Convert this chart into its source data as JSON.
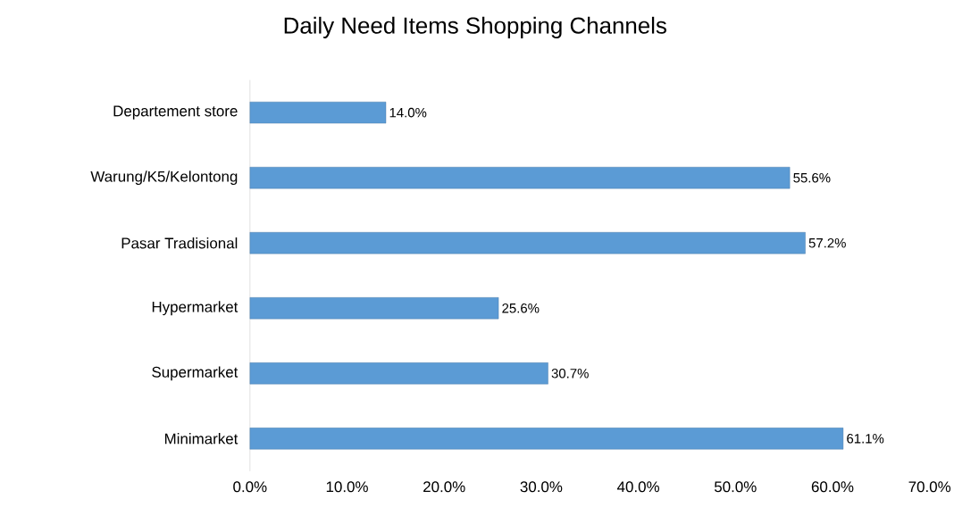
{
  "chart_data": {
    "type": "bar",
    "orientation": "horizontal",
    "title": "Daily Need Items Shopping Channels",
    "categories": [
      "Departement store",
      "Warung/K5/Kelontong",
      "Pasar Tradisional",
      "Hypermarket",
      "Supermarket",
      "Minimarket"
    ],
    "values": [
      14.0,
      55.6,
      57.2,
      25.6,
      30.7,
      61.1
    ],
    "value_labels": [
      "14.0%",
      "55.6%",
      "57.2%",
      "25.6%",
      "30.7%",
      "61.1%"
    ],
    "color": "#5b9bd5",
    "xlim": [
      0,
      70
    ],
    "xticks": [
      {
        "value": 0,
        "label": "0.0%"
      },
      {
        "value": 10,
        "label": "10.0%"
      },
      {
        "value": 20,
        "label": "20.0%"
      },
      {
        "value": 30,
        "label": "30.0%"
      },
      {
        "value": 40,
        "label": "40.0%"
      },
      {
        "value": 50,
        "label": "50.0%"
      },
      {
        "value": 60,
        "label": "60.0%"
      },
      {
        "value": 70,
        "label": "70.0%"
      }
    ]
  }
}
